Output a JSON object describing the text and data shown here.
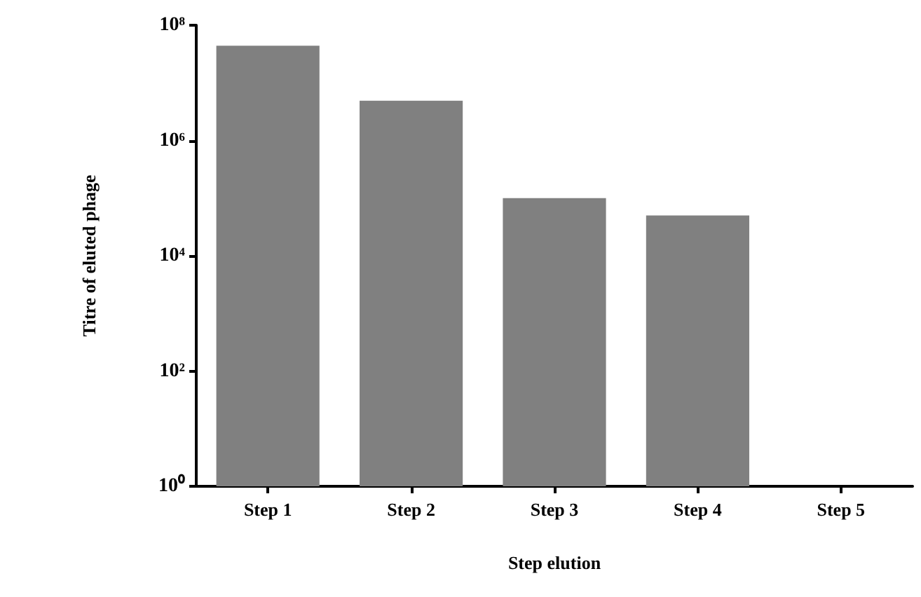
{
  "chart_data": {
    "type": "bar",
    "xlabel": "Step elution",
    "ylabel": "Titre of eluted phage",
    "categories": [
      "Step 1",
      "Step 2",
      "Step 3",
      "Step 4",
      "Step 5"
    ],
    "values": [
      44000000,
      4900000,
      100000,
      50000,
      null
    ],
    "color": "#808080",
    "log": "y",
    "ylim": [
      1,
      100000000
    ],
    "yticks": [
      {
        "value": 1,
        "label": "10⁰"
      },
      {
        "value": 100,
        "label": "10²"
      },
      {
        "value": 10000,
        "label": "10⁴"
      },
      {
        "value": 1000000,
        "label": "10⁶"
      },
      {
        "value": 100000000,
        "label": "10⁸"
      }
    ],
    "grid": false
  }
}
